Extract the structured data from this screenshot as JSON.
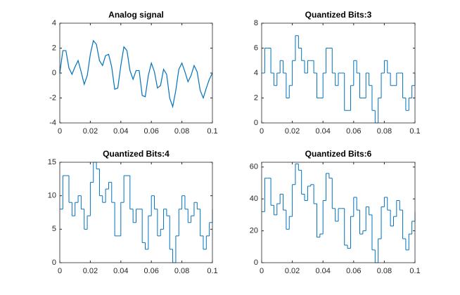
{
  "chart_data": [
    {
      "type": "line",
      "title": "Analog signal",
      "color": "#0072bd",
      "x": [
        0,
        0.002,
        0.004,
        0.006,
        0.008,
        0.01,
        0.012,
        0.014,
        0.016,
        0.018,
        0.02,
        0.022,
        0.024,
        0.026,
        0.028,
        0.03,
        0.032,
        0.034,
        0.036,
        0.038,
        0.04,
        0.042,
        0.044,
        0.046,
        0.048,
        0.05,
        0.052,
        0.054,
        0.056,
        0.058,
        0.06,
        0.062,
        0.064,
        0.066,
        0.068,
        0.07,
        0.072,
        0.074,
        0.076,
        0.078,
        0.08,
        0.082,
        0.084,
        0.086,
        0.088,
        0.09,
        0.092,
        0.094,
        0.096,
        0.098,
        0.1
      ],
      "values": [
        0,
        1.8,
        1.8,
        0.4,
        -0.1,
        0.5,
        1.0,
        0.1,
        -0.9,
        -0.2,
        1.5,
        2.6,
        2.3,
        1.0,
        0.6,
        1.4,
        1.5,
        0.5,
        -1.3,
        -1.2,
        0.6,
        2.1,
        1.8,
        0.2,
        -0.5,
        0.2,
        0.2,
        -1.8,
        -1.9,
        -0.2,
        0.8,
        0.1,
        -1.2,
        -1.0,
        0.3,
        -0.1,
        -2.0,
        -2.7,
        -1.4,
        0.3,
        0.8,
        0.1,
        -0.7,
        -0.2,
        0.6,
        0.1,
        -1.4,
        -2.0,
        -1.2,
        -0.5,
        0
      ],
      "xlim": [
        0,
        0.1
      ],
      "xticks": [
        0,
        0.02,
        0.04,
        0.06,
        0.08,
        0.1
      ],
      "ylim": [
        -4,
        4
      ],
      "yticks": [
        -4,
        -2,
        0,
        2,
        4
      ]
    },
    {
      "type": "step",
      "title": "Quantized Bits:3",
      "color": "#0072bd",
      "x": [
        0,
        0.002,
        0.004,
        0.006,
        0.008,
        0.01,
        0.012,
        0.014,
        0.016,
        0.018,
        0.02,
        0.022,
        0.024,
        0.026,
        0.028,
        0.03,
        0.032,
        0.034,
        0.036,
        0.038,
        0.04,
        0.042,
        0.044,
        0.046,
        0.048,
        0.05,
        0.052,
        0.054,
        0.056,
        0.058,
        0.06,
        0.062,
        0.064,
        0.066,
        0.068,
        0.07,
        0.072,
        0.074,
        0.076,
        0.078,
        0.08,
        0.082,
        0.084,
        0.086,
        0.088,
        0.09,
        0.092,
        0.094,
        0.096,
        0.098,
        0.1
      ],
      "values": [
        4,
        6,
        6,
        4,
        3,
        4,
        5,
        4,
        2,
        3,
        5,
        7,
        6,
        5,
        4,
        5,
        5,
        4,
        2,
        2,
        4,
        6,
        6,
        4,
        3,
        4,
        4,
        1,
        1,
        3,
        5,
        4,
        2,
        2,
        4,
        3,
        1,
        0,
        2,
        4,
        5,
        4,
        3,
        3,
        4,
        4,
        2,
        1,
        2,
        3,
        4
      ],
      "xlim": [
        0,
        0.1
      ],
      "xticks": [
        0,
        0.02,
        0.04,
        0.06,
        0.08,
        0.1
      ],
      "ylim": [
        0,
        8
      ],
      "yticks": [
        0,
        2,
        4,
        6,
        8
      ]
    },
    {
      "type": "step",
      "title": "Quantized Bits:4",
      "color": "#0072bd",
      "x": [
        0,
        0.002,
        0.004,
        0.006,
        0.008,
        0.01,
        0.012,
        0.014,
        0.016,
        0.018,
        0.02,
        0.022,
        0.024,
        0.026,
        0.028,
        0.03,
        0.032,
        0.034,
        0.036,
        0.038,
        0.04,
        0.042,
        0.044,
        0.046,
        0.048,
        0.05,
        0.052,
        0.054,
        0.056,
        0.058,
        0.06,
        0.062,
        0.064,
        0.066,
        0.068,
        0.07,
        0.072,
        0.074,
        0.076,
        0.078,
        0.08,
        0.082,
        0.084,
        0.086,
        0.088,
        0.09,
        0.092,
        0.094,
        0.096,
        0.098,
        0.1
      ],
      "values": [
        8,
        13,
        13,
        9,
        7,
        9,
        10,
        8,
        5,
        7,
        12,
        15,
        14,
        10,
        9,
        11,
        12,
        9,
        4,
        4,
        9,
        13,
        13,
        8,
        6,
        8,
        8,
        3,
        2,
        7,
        10,
        8,
        4,
        5,
        8,
        7,
        2,
        0,
        4,
        8,
        10,
        8,
        6,
        7,
        9,
        8,
        4,
        2,
        4,
        6,
        8
      ],
      "xlim": [
        0,
        0.1
      ],
      "xticks": [
        0,
        0.02,
        0.04,
        0.06,
        0.08,
        0.1
      ],
      "ylim": [
        0,
        15
      ],
      "yticks": [
        0,
        5,
        10,
        15
      ]
    },
    {
      "type": "step",
      "title": "Quantized Bits:6",
      "color": "#0072bd",
      "x": [
        0,
        0.002,
        0.004,
        0.006,
        0.008,
        0.01,
        0.012,
        0.014,
        0.016,
        0.018,
        0.02,
        0.022,
        0.024,
        0.026,
        0.028,
        0.03,
        0.032,
        0.034,
        0.036,
        0.038,
        0.04,
        0.042,
        0.044,
        0.046,
        0.048,
        0.05,
        0.052,
        0.054,
        0.056,
        0.058,
        0.06,
        0.062,
        0.064,
        0.066,
        0.068,
        0.07,
        0.072,
        0.074,
        0.076,
        0.078,
        0.08,
        0.082,
        0.084,
        0.086,
        0.088,
        0.09,
        0.092,
        0.094,
        0.096,
        0.098,
        0.1
      ],
      "values": [
        32,
        53,
        53,
        36,
        30,
        37,
        43,
        33,
        21,
        29,
        49,
        62,
        58,
        43,
        39,
        48,
        49,
        37,
        16,
        18,
        39,
        56,
        53,
        34,
        26,
        34,
        34,
        11,
        9,
        29,
        41,
        33,
        18,
        20,
        35,
        30,
        8,
        0,
        15,
        35,
        41,
        33,
        23,
        29,
        39,
        33,
        15,
        8,
        18,
        26,
        32
      ],
      "xlim": [
        0,
        0.1
      ],
      "xticks": [
        0,
        0.02,
        0.04,
        0.06,
        0.08,
        0.1
      ],
      "ylim": [
        0,
        63
      ],
      "yticks": [
        0,
        20,
        40,
        60
      ]
    }
  ]
}
